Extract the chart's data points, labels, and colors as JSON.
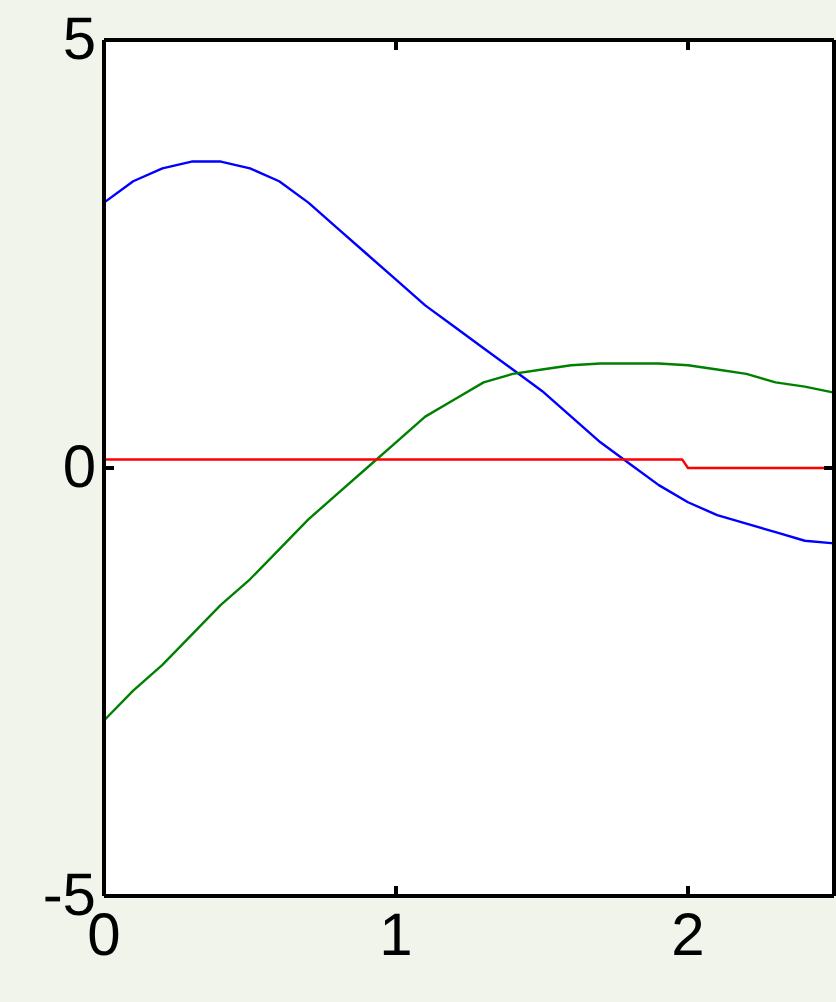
{
  "chart_data": {
    "type": "line",
    "x": [
      0,
      0.1,
      0.2,
      0.3,
      0.4,
      0.5,
      0.6,
      0.7,
      0.8,
      0.9,
      1.0,
      1.1,
      1.2,
      1.3,
      1.4,
      1.5,
      1.6,
      1.7,
      1.8,
      1.9,
      2.0,
      2.1,
      2.2,
      2.3,
      2.4,
      2.5
    ],
    "series": [
      {
        "color": "#0000ff",
        "values": [
          3.1,
          3.35,
          3.5,
          3.58,
          3.58,
          3.5,
          3.35,
          3.1,
          2.8,
          2.5,
          2.2,
          1.9,
          1.65,
          1.4,
          1.15,
          0.9,
          0.6,
          0.3,
          0.05,
          -0.2,
          -0.4,
          -0.55,
          -0.65,
          -0.75,
          -0.85,
          -0.88
        ]
      },
      {
        "color": "#008000",
        "values": [
          -2.95,
          -2.6,
          -2.3,
          -1.95,
          -1.6,
          -1.3,
          -0.95,
          -0.6,
          -0.3,
          0.0,
          0.3,
          0.6,
          0.8,
          1.0,
          1.1,
          1.15,
          1.2,
          1.22,
          1.22,
          1.22,
          1.2,
          1.15,
          1.1,
          1.0,
          0.95,
          0.88
        ]
      },
      {
        "color": "#ff0000",
        "x": [
          0,
          1.98,
          2.0,
          2.5
        ],
        "values": [
          0.1,
          0.1,
          0,
          0
        ]
      }
    ],
    "xlim": [
      0,
      2.5
    ],
    "xticks": [
      0,
      1,
      2
    ],
    "ylim": [
      -5,
      5
    ],
    "yticks": [
      -5,
      0,
      5
    ],
    "grid": false,
    "marker": "none",
    "line_style": "solid"
  }
}
